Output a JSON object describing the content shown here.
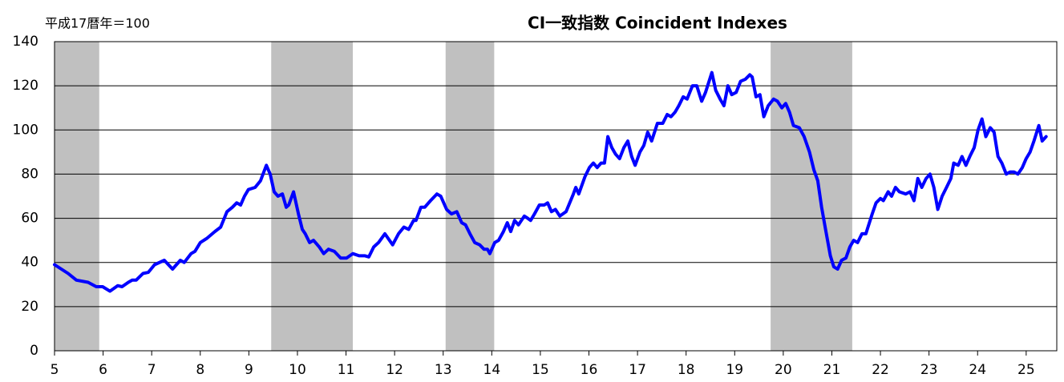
{
  "chart_data": {
    "type": "line",
    "title": "CI一致指数 Coincident Indexes",
    "unit_label": "平成17暦年＝100",
    "color": "#0000ff",
    "shade_color": "#c0c0c0",
    "grid": true,
    "xlim": [
      5,
      25.63
    ],
    "xticks": [
      5,
      6,
      7,
      8,
      9,
      10,
      11,
      12,
      13,
      14,
      15,
      16,
      17,
      18,
      19,
      20,
      21,
      22,
      23,
      24,
      25
    ],
    "ylim": [
      0,
      140
    ],
    "yticks": [
      0,
      20,
      40,
      60,
      80,
      100,
      120,
      140
    ],
    "shaded_periods": [
      [
        5,
        5.92
      ],
      [
        9.46,
        11.14
      ],
      [
        13.05,
        14.05
      ],
      [
        19.74,
        21.42
      ]
    ],
    "x": [
      5.0,
      5.28,
      5.45,
      5.69,
      5.86,
      5.99,
      6.14,
      6.3,
      6.39,
      6.52,
      6.6,
      6.68,
      6.82,
      6.93,
      7.06,
      7.26,
      7.43,
      7.59,
      7.67,
      7.81,
      7.89,
      8.0,
      8.14,
      8.3,
      8.42,
      8.55,
      8.66,
      8.75,
      8.83,
      8.91,
      8.99,
      9.13,
      9.24,
      9.36,
      9.44,
      9.52,
      9.6,
      9.69,
      9.77,
      9.82,
      9.92,
      10.02,
      10.1,
      10.16,
      10.25,
      10.33,
      10.45,
      10.54,
      10.64,
      10.76,
      10.89,
      11.01,
      11.14,
      11.27,
      11.39,
      11.47,
      11.57,
      11.67,
      11.8,
      11.96,
      12.08,
      12.19,
      12.29,
      12.39,
      12.44,
      12.54,
      12.62,
      12.74,
      12.87,
      12.95,
      13.07,
      13.17,
      13.28,
      13.38,
      13.46,
      13.55,
      13.65,
      13.75,
      13.84,
      13.91,
      13.96,
      14.06,
      14.14,
      14.24,
      14.32,
      14.39,
      14.47,
      14.55,
      14.67,
      14.74,
      14.8,
      14.88,
      14.98,
      15.08,
      15.15,
      15.23,
      15.31,
      15.4,
      15.53,
      15.68,
      15.73,
      15.79,
      15.92,
      16.01,
      16.09,
      16.17,
      16.25,
      16.32,
      16.39,
      16.47,
      16.55,
      16.63,
      16.72,
      16.8,
      16.88,
      16.95,
      17.05,
      17.13,
      17.21,
      17.29,
      17.41,
      17.52,
      17.61,
      17.69,
      17.77,
      17.85,
      17.94,
      18.02,
      18.13,
      18.22,
      18.32,
      18.4,
      18.53,
      18.61,
      18.7,
      18.78,
      18.86,
      18.94,
      19.03,
      19.12,
      19.22,
      19.31,
      19.36,
      19.44,
      19.52,
      19.6,
      19.69,
      19.8,
      19.88,
      19.97,
      20.05,
      20.13,
      20.21,
      20.33,
      20.43,
      20.54,
      20.63,
      20.71,
      20.79,
      20.87,
      20.97,
      21.04,
      21.12,
      21.2,
      21.29,
      21.37,
      21.45,
      21.53,
      21.62,
      21.7,
      21.83,
      21.91,
      22.0,
      22.06,
      22.16,
      22.23,
      22.31,
      22.39,
      22.52,
      22.61,
      22.69,
      22.77,
      22.85,
      22.94,
      23.02,
      23.1,
      23.18,
      23.27,
      23.36,
      23.45,
      23.51,
      23.6,
      23.68,
      23.76,
      23.84,
      23.93,
      24.01,
      24.09,
      24.17,
      24.26,
      24.34,
      24.42,
      24.5,
      24.59,
      24.67,
      24.75,
      24.83,
      24.92,
      25.0,
      25.08,
      25.16,
      25.26,
      25.33,
      25.41
    ],
    "values": [
      39,
      35,
      32,
      31,
      29,
      29,
      27,
      29.5,
      29,
      31,
      32,
      32,
      35,
      35.5,
      39,
      41,
      37,
      41,
      40,
      44,
      45,
      49,
      51,
      54,
      56,
      63,
      65,
      67,
      66,
      70,
      73,
      74,
      77,
      84,
      80,
      72,
      70,
      71,
      65,
      66,
      72,
      62,
      55,
      53,
      49,
      50,
      47,
      44,
      46,
      45,
      42,
      42,
      44,
      43,
      43,
      42.5,
      47,
      49,
      53,
      48,
      53,
      56,
      55,
      59,
      59,
      65,
      65,
      68,
      71,
      70,
      64,
      62,
      63,
      58,
      57,
      53,
      49,
      48,
      46,
      46,
      44,
      49,
      50,
      54,
      58,
      54,
      59,
      57,
      61,
      60,
      59,
      62,
      66,
      66,
      67,
      63,
      64,
      61,
      63,
      71,
      74,
      71,
      79,
      83,
      85,
      83,
      85,
      85,
      97,
      92,
      89,
      87,
      92,
      95,
      88,
      84,
      90,
      93,
      99,
      95,
      103,
      103,
      107,
      106,
      108,
      111,
      115,
      114,
      120,
      120,
      113,
      117,
      126,
      118,
      114,
      111,
      120,
      116,
      117,
      122,
      123,
      125,
      124,
      115,
      116,
      106,
      111,
      114,
      113,
      110,
      112,
      108,
      102,
      101,
      97,
      90,
      82,
      77,
      65,
      55,
      43,
      38,
      37,
      41,
      42,
      47,
      50,
      49,
      53,
      53,
      62,
      67,
      69,
      68,
      72,
      70,
      74,
      72,
      71,
      72,
      68,
      78,
      74,
      78,
      80,
      74,
      64,
      70,
      74,
      78,
      85,
      84,
      88,
      84,
      88,
      92,
      100,
      105,
      97,
      101,
      99,
      88,
      85,
      80,
      81,
      81,
      80,
      83,
      87,
      90,
      95,
      102,
      95,
      97
    ]
  }
}
